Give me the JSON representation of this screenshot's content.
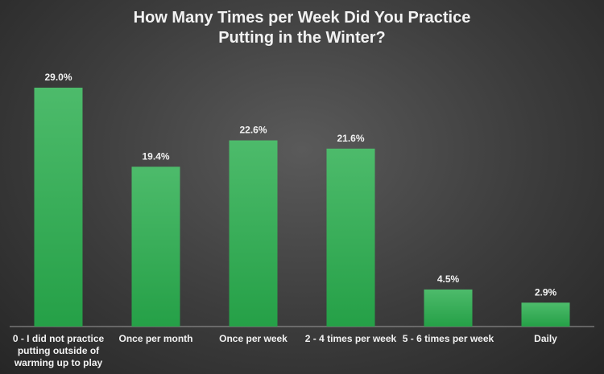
{
  "chart_data": {
    "type": "bar",
    "title": "How Many Times per Week Did You Practice Putting in the Winter?",
    "categories": [
      "0 - I did not practice putting outside of warming up to play",
      "Once per month",
      "Once per week",
      "2 - 4 times per week",
      "5 - 6 times per week",
      "Daily"
    ],
    "values": [
      29.0,
      19.4,
      22.6,
      21.6,
      4.5,
      2.9
    ],
    "value_labels": [
      "29.0%",
      "19.4%",
      "22.6%",
      "21.6%",
      "4.5%",
      "2.9%"
    ],
    "color": "#3fb35f"
  }
}
